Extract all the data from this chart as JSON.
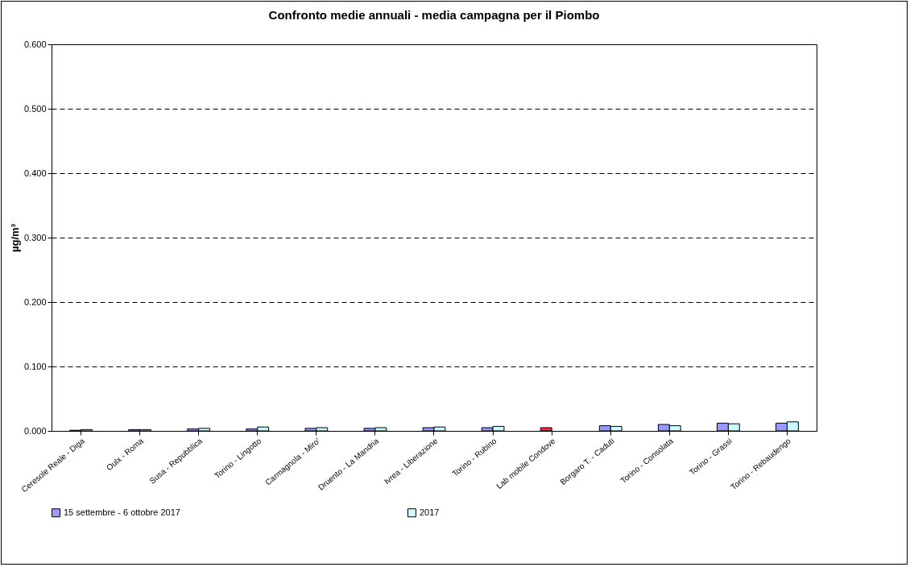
{
  "chart_data": {
    "type": "bar",
    "title": "Confronto medie annuali - media campagna per il Piombo",
    "ylabel": "µg/m³",
    "categories": [
      "Ceresole Reale - Diga",
      "Oulx - Roma",
      "Susa - Repubblica",
      "Torino - Lingotto",
      "Carmagnola - Miro'",
      "Druento - La Mandria",
      "Ivrea - Liberazione",
      "Torino - Rubino",
      "Lab mobile Condove",
      "Borgaro T. - Caduti",
      "Torino - Consolata",
      "Torino - Grassi",
      "Torino - Rebaudengo"
    ],
    "series": [
      {
        "name": "15 settembre - 6 ottobre 2017",
        "color": "#9999ff",
        "colors": [
          "#9999ff",
          "#9999ff",
          "#9999ff",
          "#9999ff",
          "#9999ff",
          "#9999ff",
          "#9999ff",
          "#9999ff",
          "#e8304a",
          "#9999ff",
          "#9999ff",
          "#9999ff",
          "#9999ff"
        ],
        "values": [
          0.001,
          0.002,
          0.003,
          0.003,
          0.004,
          0.004,
          0.005,
          0.005,
          0.005,
          0.008,
          0.01,
          0.012,
          0.012
        ]
      },
      {
        "name": "2017",
        "color": "#ccffff",
        "values": [
          0.002,
          0.002,
          0.004,
          0.006,
          0.005,
          0.005,
          0.006,
          0.007,
          null,
          0.007,
          0.008,
          0.011,
          0.014
        ]
      }
    ],
    "ylim": [
      0,
      0.6
    ],
    "yticks": [
      {
        "value": 0,
        "label": "0.000"
      },
      {
        "value": 0.1,
        "label": "0.100"
      },
      {
        "value": 0.2,
        "label": "0.200"
      },
      {
        "value": 0.3,
        "label": "0.300"
      },
      {
        "value": 0.4,
        "label": "0.400"
      },
      {
        "value": 0.5,
        "label": "0.500"
      },
      {
        "value": 0.6,
        "label": "0.600"
      }
    ],
    "grid": "y",
    "legend": "bottom"
  }
}
